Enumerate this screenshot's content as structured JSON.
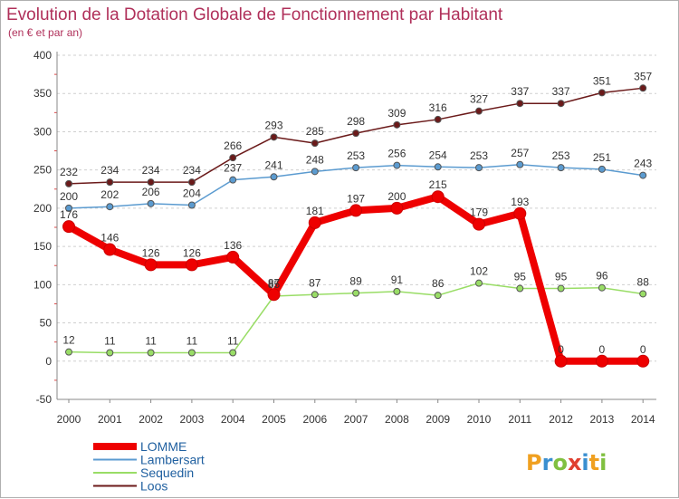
{
  "chart_data": {
    "type": "line",
    "title": "Evolution de la Dotation Globale de Fonctionnement par Habitant",
    "subtitle": "(en € et par an)",
    "xlabel": "",
    "ylabel": "",
    "ylim": [
      -50,
      400
    ],
    "yticks": [
      -50,
      0,
      50,
      100,
      150,
      200,
      250,
      300,
      350,
      400
    ],
    "categories": [
      "2000",
      "2001",
      "2002",
      "2003",
      "2004",
      "2005",
      "2006",
      "2007",
      "2008",
      "2009",
      "2010",
      "2011",
      "2012",
      "2013",
      "2014"
    ],
    "series": [
      {
        "name": "LOMME",
        "color": "#ee0000",
        "values": [
          176,
          146,
          126,
          126,
          136,
          87,
          181,
          197,
          200,
          215,
          179,
          193,
          0,
          0,
          0
        ]
      },
      {
        "name": "Lambersart",
        "color": "#5b9bd0",
        "values": [
          200,
          202,
          206,
          204,
          237,
          241,
          248,
          253,
          256,
          254,
          253,
          257,
          253,
          251,
          243
        ]
      },
      {
        "name": "Sequedin",
        "color": "#99dd66",
        "values": [
          12,
          11,
          11,
          11,
          11,
          85,
          87,
          89,
          91,
          86,
          102,
          95,
          95,
          96,
          88
        ]
      },
      {
        "name": "Loos",
        "color": "#6b1a1a",
        "values": [
          232,
          234,
          234,
          234,
          266,
          293,
          285,
          298,
          309,
          316,
          327,
          337,
          337,
          351,
          357
        ]
      }
    ],
    "legend_position": "bottom-left",
    "grid": "horizontal-dashed"
  },
  "logo": {
    "text": "Proxiti"
  }
}
